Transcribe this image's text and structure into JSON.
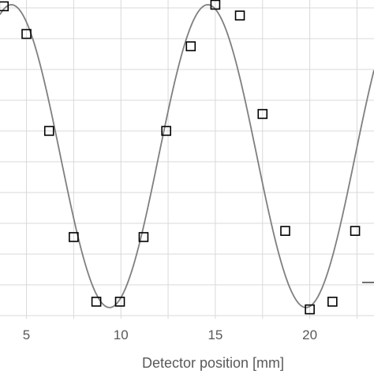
{
  "chart_data": {
    "type": "scatter",
    "title": "",
    "xlabel": "Detector position [mm]",
    "ylabel": "",
    "xlim": [
      3.6,
      23.4
    ],
    "ylim": [
      0,
      1
    ],
    "x_ticks": [
      5,
      10,
      15,
      20
    ],
    "grid": "vertical and horizontal",
    "legend": "none",
    "series": [
      {
        "marker": "open-square",
        "x": [
          3.8,
          5.0,
          6.2,
          7.5,
          8.7,
          9.95,
          11.2,
          12.4,
          13.7,
          15.0,
          16.3,
          17.5,
          18.7,
          20.0,
          21.2,
          22.4
        ],
        "y": [
          0.995,
          0.905,
          0.59,
          0.245,
          0.035,
          0.035,
          0.245,
          0.59,
          0.865,
          1.0,
          0.965,
          0.645,
          0.265,
          0.01,
          0.035,
          0.265
        ]
      },
      {
        "style": "line",
        "fit_function": "sine",
        "wavelength": 10.4,
        "crest_x": 4.2,
        "offset": 0.508,
        "amplitude": 0.492
      }
    ],
    "colors": {
      "fit_line": "#7f7f7f",
      "marker": "#000000",
      "grid": "#d9d9d9",
      "text": "#595959"
    }
  }
}
